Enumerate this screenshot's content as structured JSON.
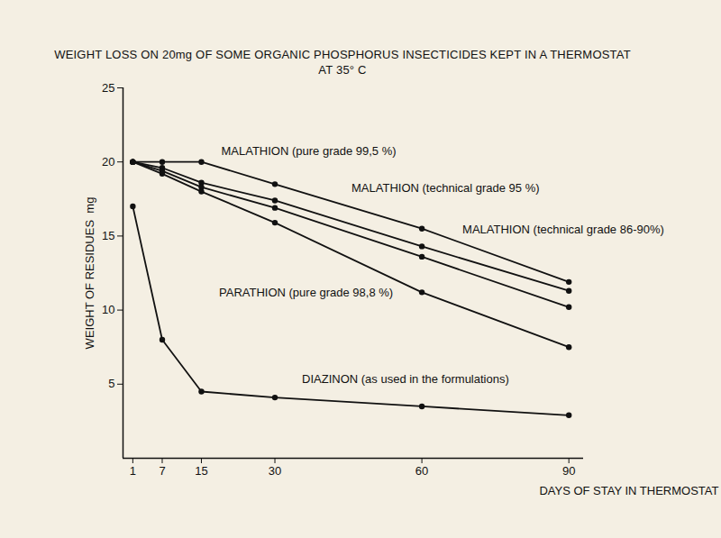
{
  "chart_data": {
    "type": "line",
    "title": "WEIGHT LOSS ON 20mg OF SOME ORGANIC PHOSPHORUS INSECTICIDES KEPT IN A THERMOSTAT",
    "subtitle": "AT 35° C",
    "x_label": "DAYS OF STAY IN THERMOSTAT",
    "y_label": "WEIGHT OF RESIDUES  mg",
    "x": [
      1,
      7,
      15,
      30,
      60,
      90
    ],
    "xlim": [
      -1,
      93
    ],
    "xticks": [
      1,
      7,
      15,
      30,
      60,
      90
    ],
    "ylim": [
      0,
      25
    ],
    "yticks": [
      5,
      10,
      15,
      20,
      25
    ],
    "grid": false,
    "marker": "circle",
    "line_style": "solid",
    "series": [
      {
        "name": "MALATHION (pure grade 99,5 %)",
        "color": "#111111",
        "values": [
          20,
          20,
          20,
          18.5,
          15.5,
          11.9
        ]
      },
      {
        "name": "MALATHION (technical grade 95 %)",
        "color": "#111111",
        "values": [
          20,
          19.6,
          18.6,
          17.4,
          14.3,
          11.3
        ]
      },
      {
        "name": "MALATHION (technical grade 86-90%)",
        "color": "#111111",
        "values": [
          20,
          19.4,
          18.3,
          16.9,
          13.6,
          10.2
        ]
      },
      {
        "name": "PARATHION (pure grade 98,8 %)",
        "color": "#111111",
        "values": [
          20,
          19.2,
          18.0,
          15.9,
          11.2,
          7.5
        ]
      },
      {
        "name": "DIAZINON (as used in the formulations)",
        "color": "#111111",
        "values": [
          17,
          8.0,
          4.5,
          4.1,
          3.5,
          2.9
        ]
      }
    ]
  }
}
